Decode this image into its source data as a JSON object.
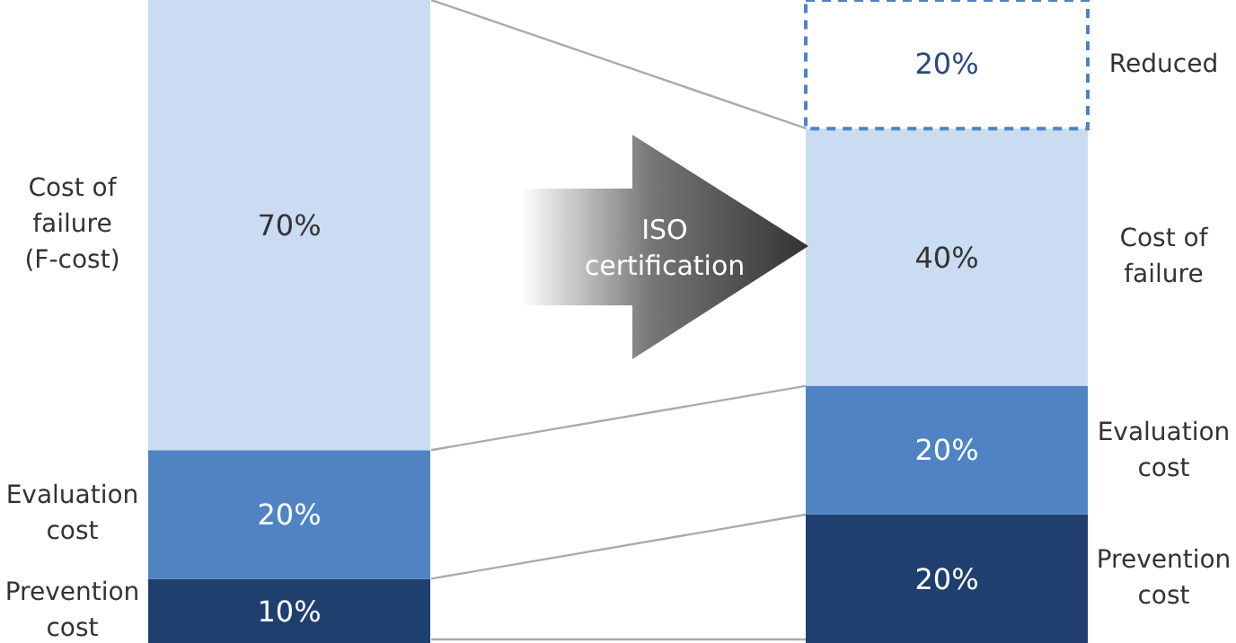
{
  "chart_data": {
    "type": "bar",
    "stacked": true,
    "categories": [
      null,
      null
    ],
    "ylim": [
      0,
      100
    ],
    "series": [
      {
        "name": "Prevention cost",
        "color": "#1f3f6e",
        "values": [
          10,
          20
        ],
        "value_labels": [
          "10%",
          "20%"
        ]
      },
      {
        "name": "Evaluation cost",
        "color": "#4f83c4",
        "values": [
          20,
          20
        ],
        "value_labels": [
          "20%",
          "20%"
        ]
      },
      {
        "name": "Cost of failure",
        "color": "#c9dcf1",
        "values": [
          70,
          40
        ],
        "value_labels": [
          "70%",
          "40%"
        ]
      },
      {
        "name": "Reduced",
        "color": "#4f83c4",
        "line_style": "dashed",
        "values": [
          null,
          20
        ],
        "value_labels": [
          null,
          "20%"
        ]
      }
    ],
    "annotations": [
      "Prevention cost",
      "Evaluation cost",
      "Cost of failure (F-cost)",
      "ISO certification"
    ]
  }
}
